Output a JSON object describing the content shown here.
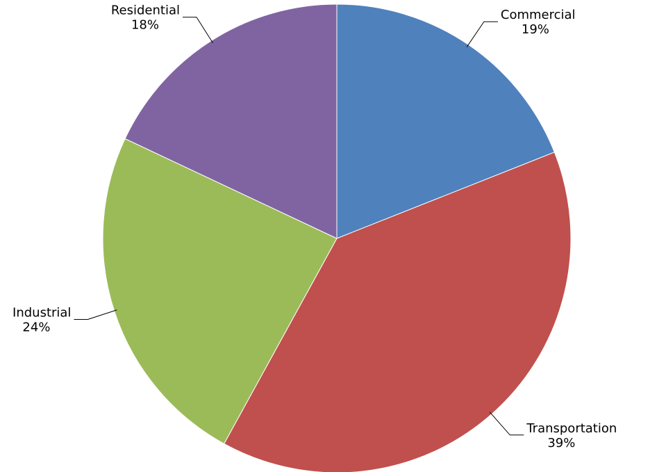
{
  "chart_data": {
    "type": "pie",
    "categories": [
      "Commercial",
      "Transportation",
      "Industrial",
      "Residential"
    ],
    "values": [
      19,
      39,
      24,
      18
    ],
    "value_labels": [
      "19%",
      "39%",
      "24%",
      "18%"
    ],
    "colors": [
      "#4f81bd",
      "#c0504d",
      "#9bbb59",
      "#8064a2"
    ]
  }
}
